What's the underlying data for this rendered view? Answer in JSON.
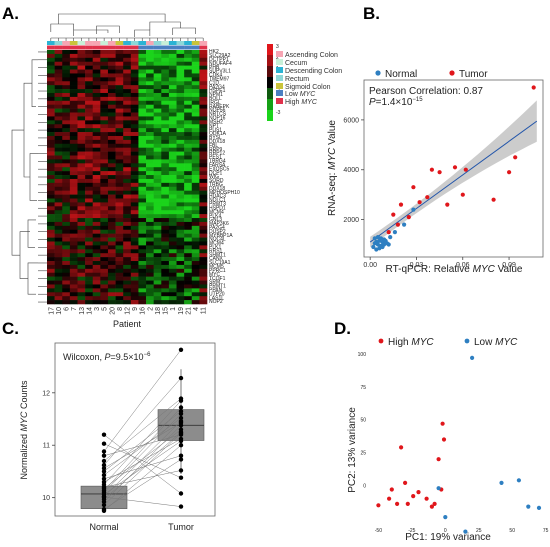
{
  "panels": {
    "A": "A.",
    "B": "B.",
    "C": "C.",
    "D": "D."
  },
  "heatmap": {
    "xlabel": "Patient",
    "patients": [
      "17",
      "10",
      "6",
      "7",
      "13",
      "14",
      "3",
      "5",
      "20",
      "8",
      "12",
      "9",
      "16",
      "2",
      "18",
      "15",
      "1",
      "19",
      "21",
      "4",
      "11"
    ],
    "genes": [
      "NOP2",
      "LAS1L",
      "UTP20",
      "PPAN",
      "PRMT1",
      "SRM",
      "TCOF1",
      "MYC",
      "PPRC1",
      "MCM5",
      "SLC19A1",
      "CANX",
      "SHMT1",
      "RRS1",
      "PLK1",
      "MCM4",
      "NOC4L",
      "MYBBP1A",
      "DUSP2",
      "PA2G4",
      "MAP3K6",
      "GNL3",
      "PLK4",
      "MCM4",
      "HSPD1",
      "PRMT3",
      "NOLC1",
      "HDAC3",
      "MPHOSPH10",
      "DDX18",
      "TRBG",
      "SORD",
      "WIG",
      "DCP1",
      "EXOSC5",
      "FARSA",
      "TBRG4",
      "PES1",
      "RRP12",
      "RRP9",
      "FBL",
      "DDX18",
      "BYSL",
      "ODK1A",
      "PUS1",
      "NPT",
      "MSH2",
      "NOP16",
      "NRTCS",
      "NOP56",
      "RABEPK",
      "IRGL",
      "BOLL",
      "NPM1",
      "HSPE1",
      "PA2G4",
      "C1D",
      "TMEM97",
      "CDK4",
      "SUPV3L1",
      "PHB",
      "NDUFAF4",
      "DCTPP1",
      "SLC29A2",
      "HK2"
    ],
    "legend_colon": {
      "title_items": [
        "Ascending Colon",
        "Cecum",
        "Descending Colon",
        "Rectum",
        "Sigmoid Colon"
      ],
      "colors": [
        "#f7a5b3",
        "#c8f0d8",
        "#2bb3d4",
        "#8dd8d8",
        "#c9c43a"
      ]
    },
    "legend_myc": {
      "items": [
        "Low MYC",
        "High MYC"
      ],
      "low_prefix": "Low ",
      "high_prefix": "High ",
      "italic": "MYC",
      "colors": [
        "#4a7fc1",
        "#e0314b"
      ]
    },
    "scale_labels": [
      "3",
      "2",
      "1",
      "0",
      "-1",
      "-2",
      "-3"
    ],
    "colors": {
      "high": "#e0161b",
      "mid": "#000000",
      "low": "#1bd41b"
    }
  },
  "chart_data": [
    {
      "panel": "B",
      "type": "scatter",
      "xlabel_prefix": "RT-qPCR: Relative ",
      "xlabel_italic": "MYC",
      "xlabel_suffix": " Value",
      "ylabel_prefix": "RNA-seq: ",
      "ylabel_italic": "MYC",
      "ylabel_suffix": " Value",
      "xlim": [
        -0.004,
        0.112
      ],
      "ylim": [
        500,
        7600
      ],
      "xticks": [
        "0.00",
        "0.03",
        "0.06",
        "0.09"
      ],
      "xtick_values": [
        0,
        0.03,
        0.06,
        0.09
      ],
      "yticks": [
        "2000",
        "4000",
        "6000"
      ],
      "ytick_values": [
        2000,
        4000,
        6000
      ],
      "annotation_line1": "Pearson Correlation: 0.87",
      "annotation_line2_prefix": "P",
      "annotation_line2_value": "=1.4×10",
      "annotation_line2_exp": "−15",
      "legend": [
        "Normal",
        "Tumor"
      ],
      "colors": {
        "Normal": "#2e7fc1",
        "Tumor": "#e0161b",
        "fit": "#2255aa",
        "ci": "#bfbfbf"
      },
      "fit": {
        "x": [
          0.0,
          0.108
        ],
        "y": [
          1100,
          5950
        ]
      },
      "series": [
        {
          "name": "Normal",
          "x": [
            0.002,
            0.003,
            0.003,
            0.004,
            0.004,
            0.005,
            0.005,
            0.006,
            0.006,
            0.007,
            0.007,
            0.008,
            0.008,
            0.009,
            0.009,
            0.01,
            0.011,
            0.012,
            0.013,
            0.016,
            0.022,
            0.028
          ],
          "y": [
            900,
            1050,
            1250,
            800,
            1100,
            1000,
            1300,
            850,
            1150,
            950,
            1250,
            1100,
            900,
            1200,
            1000,
            1150,
            1050,
            1000,
            1300,
            1500,
            1800,
            2400
          ]
        },
        {
          "name": "Tumor",
          "x": [
            0.012,
            0.015,
            0.018,
            0.02,
            0.025,
            0.028,
            0.032,
            0.037,
            0.04,
            0.045,
            0.05,
            0.055,
            0.06,
            0.062,
            0.08,
            0.09,
            0.094,
            0.106
          ],
          "y": [
            1500,
            2200,
            1800,
            2600,
            2100,
            3300,
            2700,
            2900,
            4000,
            3900,
            2600,
            4100,
            3000,
            4000,
            2800,
            3900,
            4500,
            7300
          ]
        }
      ]
    },
    {
      "panel": "C",
      "type": "box",
      "categories": [
        "Normal",
        "Tumor"
      ],
      "ylabel_prefix": "Normalized ",
      "ylabel_italic": "MYC",
      "ylabel_suffix": " Counts",
      "ylim": [
        9.65,
        12.95
      ],
      "yticks": [
        "10",
        "11",
        "12"
      ],
      "ytick_values": [
        10,
        11,
        12
      ],
      "annotation_prefix": "Wilcoxon, ",
      "annotation_p": "P",
      "annotation_value": "=9.5×10",
      "annotation_exp": "−6",
      "box": [
        {
          "q1": 9.79,
          "median": 10.07,
          "q3": 10.22,
          "whisker_low": 9.75,
          "whisker_high": 10.57
        },
        {
          "q1": 11.09,
          "median": 11.38,
          "q3": 11.68,
          "whisker_low": 10.45,
          "whisker_high": 12.45
        }
      ],
      "pairs": [
        [
          9.78,
          10.73
        ],
        [
          9.86,
          11.23
        ],
        [
          9.92,
          11.38
        ],
        [
          9.97,
          11.25
        ],
        [
          10.02,
          11.46
        ],
        [
          10.06,
          11.08
        ],
        [
          10.1,
          11.6
        ],
        [
          10.13,
          11.72
        ],
        [
          10.17,
          11.3
        ],
        [
          10.2,
          10.52
        ],
        [
          10.25,
          11.85
        ],
        [
          10.3,
          11.12
        ],
        [
          10.36,
          10.8
        ],
        [
          10.43,
          11.52
        ],
        [
          10.5,
          11.65
        ],
        [
          10.56,
          11.43
        ],
        [
          10.62,
          12.28
        ],
        [
          10.7,
          11.89
        ],
        [
          10.8,
          11.2
        ],
        [
          10.88,
          12.82
        ],
        [
          11.03,
          10.38
        ],
        [
          11.2,
          10.08
        ],
        [
          9.75,
          11.0
        ],
        [
          10.01,
          9.83
        ]
      ]
    },
    {
      "panel": "D",
      "type": "scatter",
      "xlabel": "PC1: 19% variance",
      "ylabel": "PC2: 13% variance",
      "xlim": [
        -57,
        73
      ],
      "ylim": [
        -30,
        103
      ],
      "xticks": [
        "-50",
        "-25",
        "0",
        "25",
        "50",
        "75"
      ],
      "xtick_values": [
        -50,
        -25,
        0,
        25,
        50,
        75
      ],
      "yticks": [
        "0",
        "25",
        "50",
        "75",
        "100"
      ],
      "ytick_values": [
        0,
        25,
        50,
        75,
        100
      ],
      "legend_high_prefix": "High ",
      "legend_low_prefix": "Low ",
      "legend_italic": "MYC",
      "colors": {
        "High MYC": "#e0161b",
        "Low MYC": "#2e7fc1"
      },
      "series": [
        {
          "name": "High MYC",
          "x": [
            -50,
            -42,
            -40,
            -36,
            -33,
            -30,
            -28,
            -24,
            -20,
            -14,
            -10,
            -8,
            -5,
            -3,
            -2,
            -1
          ],
          "y": [
            -15,
            -10,
            -3,
            -14,
            29,
            2,
            -14,
            -8,
            -5,
            -10,
            -16,
            -14,
            20,
            -3,
            47,
            35
          ]
        },
        {
          "name": "Low MYC",
          "x": [
            -5,
            0,
            15,
            20,
            42,
            55,
            62,
            70
          ],
          "y": [
            -2,
            -24,
            -35,
            97,
            2,
            4,
            -16,
            -17
          ]
        }
      ]
    }
  ]
}
